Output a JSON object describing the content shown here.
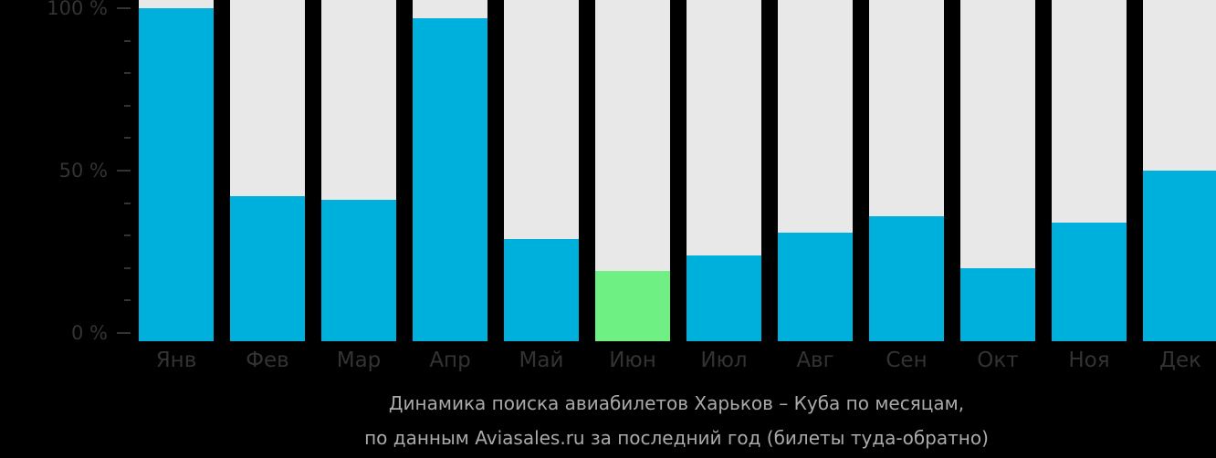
{
  "chart_data": {
    "type": "bar",
    "title": "Динамика поиска авиабилетов Харьков – Куба по месяцам,",
    "subtitle": "по данным Aviasales.ru за последний год (билеты туда-обратно)",
    "categories": [
      "Янв",
      "Фев",
      "Мар",
      "Апр",
      "Май",
      "Июн",
      "Июл",
      "Авг",
      "Сен",
      "Окт",
      "Ноя",
      "Дек"
    ],
    "values": [
      100,
      42,
      41,
      97,
      29,
      19,
      24,
      31,
      36,
      20,
      34,
      50
    ],
    "highlight_index": 5,
    "xlabel": "",
    "ylabel": "",
    "ylim": [
      0,
      100
    ],
    "yticks": [
      "0 %",
      "50 %",
      "100 %"
    ],
    "grid": false,
    "legend": null,
    "colors": {
      "bar": "#00b0dc",
      "highlight": "#6ef083",
      "track": "#e8e8e8",
      "background": "#000000",
      "axis_text": "#333333",
      "caption_text": "#aaaaaa"
    }
  },
  "axis": {
    "y_labels": [
      {
        "label": "100 %",
        "value": 100
      },
      {
        "label": "50 %",
        "value": 50
      },
      {
        "label": "0 %",
        "value": 0
      }
    ]
  },
  "caption": {
    "line1": "Динамика поиска авиабилетов Харьков – Куба по месяцам,",
    "line2": "по данным Aviasales.ru за последний год (билеты туда-обратно)"
  }
}
